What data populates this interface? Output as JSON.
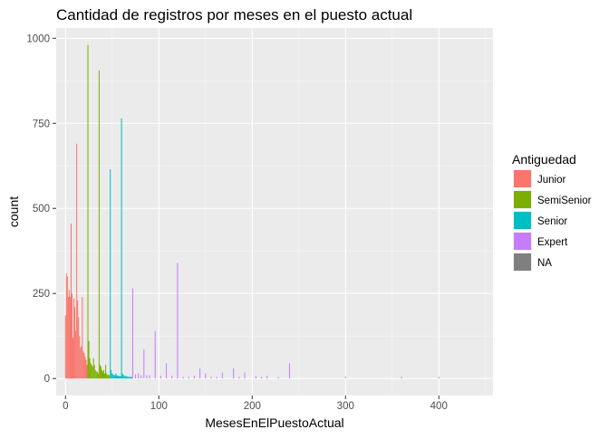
{
  "chart_data": {
    "type": "bar",
    "title": "Cantidad de registros por meses en el puesto actual",
    "xlabel": "MesesEnElPuestoActual",
    "ylabel": "count",
    "xlim": [
      -10,
      458
    ],
    "ylim": [
      -50,
      1030
    ],
    "x_ticks": [
      0,
      100,
      200,
      300,
      400
    ],
    "x_tick_labels": [
      "0",
      "100",
      "200",
      "300",
      "400"
    ],
    "y_ticks": [
      0,
      250,
      500,
      750,
      1000
    ],
    "y_tick_labels": [
      "0",
      "250",
      "500",
      "750",
      "1000"
    ],
    "grid": true,
    "legend_position": "right",
    "legend_title": "Antiguedad",
    "series": [
      {
        "name": "Junior",
        "color": "#F8766D",
        "x": [
          0,
          1,
          2,
          3,
          4,
          5,
          6,
          7,
          8,
          9,
          10,
          11,
          12,
          13,
          14,
          15,
          16,
          17,
          18,
          19,
          20,
          21,
          22,
          23
        ],
        "values": [
          185,
          310,
          300,
          240,
          260,
          240,
          455,
          250,
          120,
          235,
          210,
          140,
          690,
          230,
          180,
          125,
          90,
          95,
          240,
          80,
          75,
          65,
          55,
          40
        ]
      },
      {
        "name": "SemiSenior",
        "color": "#7CAE00",
        "x": [
          24,
          25,
          26,
          27,
          28,
          29,
          30,
          31,
          32,
          33,
          34,
          35,
          36,
          37,
          38,
          39,
          40,
          41,
          42,
          43,
          44,
          45,
          46,
          47
        ],
        "values": [
          980,
          110,
          60,
          45,
          40,
          35,
          60,
          40,
          25,
          20,
          20,
          15,
          905,
          40,
          35,
          25,
          20,
          25,
          15,
          40,
          15,
          10,
          12,
          10
        ]
      },
      {
        "name": "Senior",
        "color": "#00BFC4",
        "x": [
          48,
          49,
          50,
          51,
          52,
          53,
          54,
          55,
          56,
          57,
          58,
          59,
          60,
          61,
          62,
          63,
          64,
          65,
          66,
          67,
          68,
          69,
          70,
          71
        ],
        "values": [
          615,
          25,
          15,
          12,
          10,
          10,
          15,
          10,
          8,
          8,
          7,
          7,
          765,
          15,
          10,
          8,
          7,
          8,
          6,
          5,
          5,
          5,
          5,
          4
        ]
      },
      {
        "name": "Expert",
        "color": "#C77CFF",
        "x": [
          72,
          75,
          78,
          81,
          84,
          87,
          90,
          96,
          102,
          108,
          114,
          120,
          126,
          132,
          138,
          144,
          150,
          156,
          162,
          168,
          180,
          186,
          192,
          204,
          210,
          216,
          228,
          240,
          300,
          360,
          400
        ],
        "values": [
          265,
          12,
          15,
          10,
          85,
          10,
          10,
          140,
          8,
          45,
          8,
          340,
          5,
          5,
          8,
          30,
          15,
          5,
          5,
          18,
          30,
          5,
          18,
          8,
          5,
          8,
          4,
          45,
          6,
          5,
          5
        ]
      },
      {
        "name": "NA",
        "color": "#7F7F7F",
        "x": [],
        "values": []
      }
    ]
  }
}
